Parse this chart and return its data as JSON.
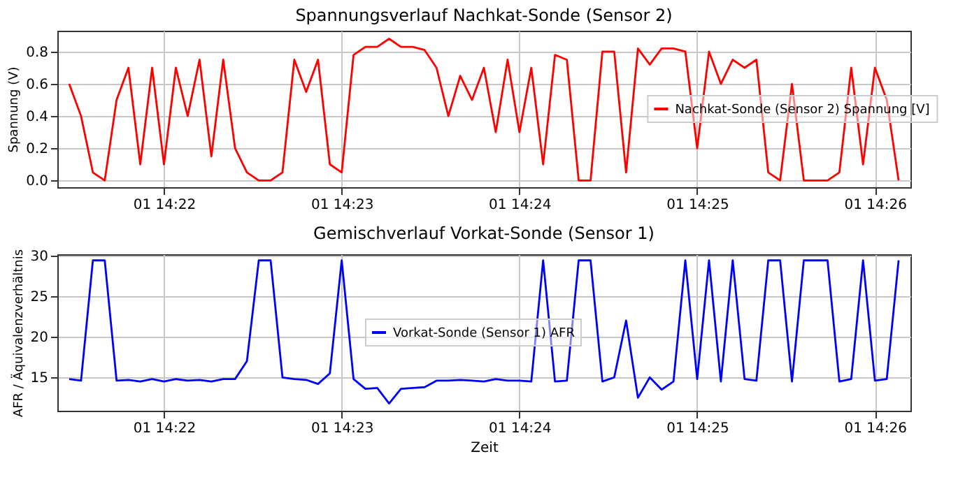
{
  "chart_data": [
    {
      "type": "line",
      "title": "Spannungsverlauf Nachkat-Sonde (Sensor 2)",
      "ylabel": "Spannung (V)",
      "categories": [
        null,
        null,
        null,
        null,
        null,
        null,
        null,
        null,
        "01 14:22",
        null,
        null,
        null,
        null,
        null,
        null,
        null,
        null,
        null,
        null,
        null,
        null,
        null,
        null,
        "01 14:23",
        null,
        null,
        null,
        null,
        null,
        null,
        null,
        null,
        null,
        null,
        null,
        null,
        null,
        null,
        "01 14:24",
        null,
        null,
        null,
        null,
        null,
        null,
        null,
        null,
        null,
        null,
        null,
        null,
        null,
        null,
        "01 14:25",
        null,
        null,
        null,
        null,
        null,
        null,
        null,
        null,
        null,
        null,
        null,
        null,
        null,
        null,
        "01 14:26",
        null,
        null
      ],
      "series": [
        {
          "name": "Nachkat-Sonde (Sensor 2) Spannung [V]",
          "color": "#ff0000",
          "values": [
            0.6,
            0.4,
            0.05,
            0.0,
            0.5,
            0.7,
            0.1,
            0.7,
            0.1,
            0.7,
            0.4,
            0.75,
            0.15,
            0.75,
            0.2,
            0.05,
            0.0,
            0.0,
            0.05,
            0.75,
            0.55,
            0.75,
            0.1,
            0.05,
            0.78,
            0.83,
            0.83,
            0.88,
            0.83,
            0.83,
            0.81,
            0.7,
            0.4,
            0.65,
            0.5,
            0.7,
            0.3,
            0.75,
            0.3,
            0.7,
            0.1,
            0.78,
            0.75,
            0.0,
            0.0,
            0.8,
            0.8,
            0.05,
            0.82,
            0.72,
            0.82,
            0.82,
            0.8,
            0.2,
            0.8,
            0.6,
            0.75,
            0.7,
            0.75,
            0.05,
            0.0,
            0.6,
            0.0,
            0.0,
            0.0,
            0.05,
            0.7,
            0.1,
            0.7,
            0.5,
            0.0
          ]
        }
      ],
      "ylim": [
        -0.042,
        0.93
      ],
      "yticks": [
        {
          "value": 0,
          "label": "0.0"
        },
        0.2,
        0.4,
        0.6,
        0.8
      ],
      "grid": true,
      "legend": "right",
      "marker": "none",
      "line_style": "solid"
    },
    {
      "type": "line",
      "title": "Gemischverlauf Vorkat-Sonde (Sensor 1)",
      "xlabel": "Zeit",
      "ylabel": "AFR / Äquivalenzverhältnis",
      "categories": [
        null,
        null,
        null,
        null,
        null,
        null,
        null,
        null,
        "01 14:22",
        null,
        null,
        null,
        null,
        null,
        null,
        null,
        null,
        null,
        null,
        null,
        null,
        null,
        null,
        "01 14:23",
        null,
        null,
        null,
        null,
        null,
        null,
        null,
        null,
        null,
        null,
        null,
        null,
        null,
        null,
        "01 14:24",
        null,
        null,
        null,
        null,
        null,
        null,
        null,
        null,
        null,
        null,
        null,
        null,
        null,
        null,
        "01 14:25",
        null,
        null,
        null,
        null,
        null,
        null,
        null,
        null,
        null,
        null,
        null,
        null,
        null,
        null,
        "01 14:26",
        null,
        null
      ],
      "series": [
        {
          "name": "Vorkat-Sonde (Sensor 1) AFR",
          "color": "#0000ff",
          "values": [
            14.8,
            14.6,
            29.4,
            29.4,
            14.6,
            14.7,
            14.5,
            14.8,
            14.5,
            14.8,
            14.6,
            14.7,
            14.5,
            14.8,
            14.8,
            17,
            29.4,
            29.4,
            15,
            14.8,
            14.7,
            14.2,
            15.5,
            29.4,
            14.8,
            13.6,
            13.7,
            11.8,
            13.6,
            13.7,
            13.8,
            14.6,
            14.6,
            14.7,
            14.6,
            14.5,
            14.8,
            14.6,
            14.6,
            14.5,
            29.4,
            14.5,
            14.6,
            29.4,
            29.4,
            14.5,
            15,
            22,
            12.5,
            15,
            13.5,
            14.5,
            29.4,
            14.8,
            29.4,
            14.5,
            29.4,
            14.8,
            14.6,
            29.4,
            29.4,
            14.5,
            29.4,
            29.4,
            29.4,
            14.5,
            14.8,
            29.4,
            14.6,
            14.8,
            29.4
          ]
        }
      ],
      "ylim": [
        10.9,
        30.15
      ],
      "yticks": [
        15,
        20,
        25,
        30
      ],
      "grid": true,
      "legend": "center",
      "marker": "none",
      "line_style": "solid"
    }
  ]
}
